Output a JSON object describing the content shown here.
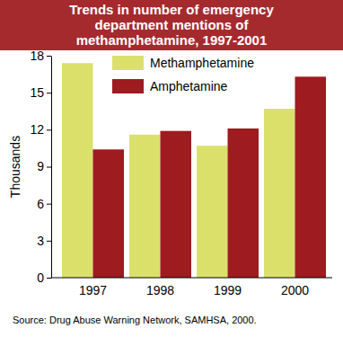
{
  "chart_data": {
    "type": "bar",
    "title": "Trends in number of emergency department mentions of methamphetamine, 1997-2001",
    "y_label": "Thousands",
    "source": "Source: Drug Abuse Warning Network, SAMHSA, 2000.",
    "categories": [
      "1997",
      "1998",
      "1999",
      "2000"
    ],
    "series": [
      {
        "name": "Methamphetamine",
        "color": "#dbe06b",
        "values": [
          17.4,
          11.6,
          10.7,
          13.7
        ]
      },
      {
        "name": "Amphetamine",
        "color": "#9e1b1f",
        "values": [
          10.4,
          11.9,
          12.1,
          16.3
        ]
      }
    ],
    "ylim": [
      0,
      18
    ],
    "yticks": [
      0,
      3,
      6,
      9,
      12,
      15,
      18
    ],
    "grid": false,
    "legend": "top"
  }
}
